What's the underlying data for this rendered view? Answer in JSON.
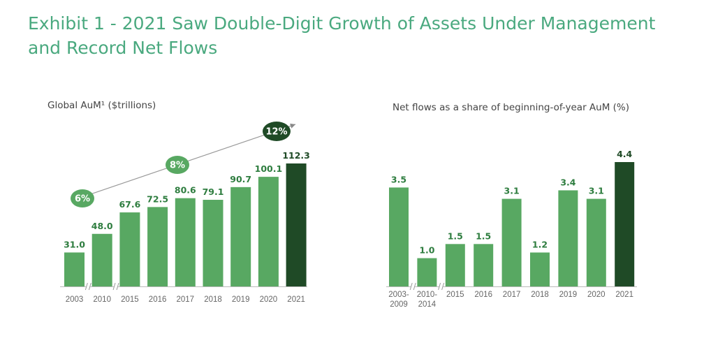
{
  "page": {
    "title": "Exhibit 1 - 2021 Saw Double-Digit Growth of Assets Under Management and Record Net Flows"
  },
  "colors": {
    "bar": "#58a862",
    "bar_highlight": "#1f4a26",
    "title": "#4aa97f",
    "badge_light": "#58a862",
    "badge_dark": "#1f4a26"
  },
  "chart_data": [
    {
      "type": "bar",
      "title": "Global AuM¹ ($trillions)",
      "categories": [
        "2003",
        "2010",
        "2015",
        "2016",
        "2017",
        "2018",
        "2019",
        "2020",
        "2021"
      ],
      "values": [
        31.0,
        48.0,
        67.6,
        72.5,
        80.6,
        79.1,
        90.7,
        100.1,
        112.3
      ],
      "labels": [
        "31.0",
        "48.0",
        "67.6",
        "72.5",
        "80.6",
        "79.1",
        "90.7",
        "100.1",
        "112.3"
      ],
      "highlight_index": 8,
      "axis_breaks_after": [
        0,
        1
      ],
      "ylim": [
        0,
        120
      ],
      "annotations": [
        {
          "label": "6%",
          "style": "light"
        },
        {
          "label": "8%",
          "style": "light"
        },
        {
          "label": "12%",
          "style": "dark"
        }
      ]
    },
    {
      "type": "bar",
      "title": "Net flows as a share of beginning-of-year AuM (%)",
      "categories": [
        "2003-\n2009",
        "2010-\n2014",
        "2015",
        "2016",
        "2017",
        "2018",
        "2019",
        "2020",
        "2021"
      ],
      "values": [
        3.5,
        1.0,
        1.5,
        1.5,
        3.1,
        1.2,
        3.4,
        3.1,
        4.4
      ],
      "labels": [
        "3.5",
        "1.0",
        "1.5",
        "1.5",
        "3.1",
        "1.2",
        "3.4",
        "3.1",
        "4.4"
      ],
      "highlight_index": 8,
      "axis_breaks_after": [
        0,
        1
      ],
      "ylim": [
        0,
        4.4
      ]
    }
  ]
}
